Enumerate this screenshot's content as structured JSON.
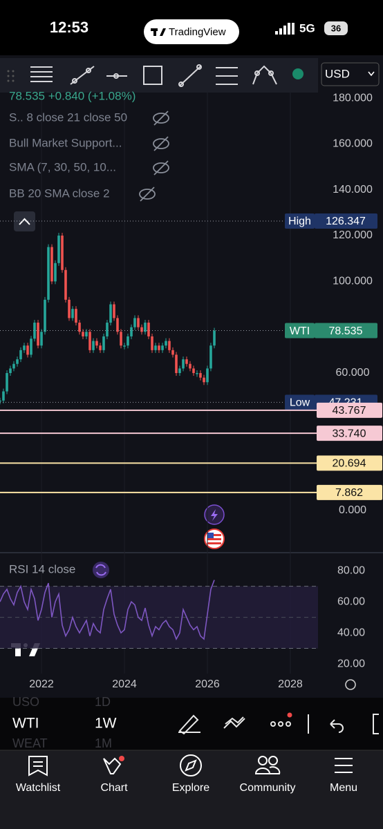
{
  "status": {
    "time": "12:53",
    "app": "TradingView",
    "network": "5G",
    "battery": "36"
  },
  "currency": "USD",
  "legend": [
    "78.535 +0.840 (+1.08%)",
    "S.. 8 close 21 close 50",
    "Bull Market Support...",
    "SMA (7, 30, 50, 10...",
    "BB 20 SMA close 2"
  ],
  "chart_data": [
    {
      "type": "candlestick",
      "x": [
        2021,
        2021.083,
        2021.167,
        2021.25,
        2021.333,
        2021.417,
        2021.5,
        2021.583,
        2021.667,
        2021.75,
        2021.833,
        2021.917,
        2022,
        2022.083,
        2022.167,
        2022.25,
        2022.333,
        2022.417,
        2022.5,
        2022.583,
        2022.667,
        2022.75,
        2022.833,
        2022.917,
        2023,
        2023.083,
        2023.167,
        2023.25,
        2023.333,
        2023.417,
        2023.5,
        2023.583,
        2023.667,
        2023.75,
        2023.833,
        2023.917,
        2024,
        2024.083,
        2024.167,
        2024.25,
        2024.333,
        2024.417,
        2024.5,
        2024.583,
        2024.667,
        2024.75,
        2024.833,
        2024.917,
        2025,
        2025.083,
        2025.167,
        2025.25,
        2025.333,
        2025.417,
        2025.5,
        2025.583,
        2025.667,
        2025.75,
        2025.833,
        2025.917,
        2026,
        2026.083,
        2026.167
      ],
      "values": [
        48,
        52,
        60,
        62,
        64,
        66,
        70,
        72,
        68,
        75,
        82,
        72,
        78,
        92,
        115,
        100,
        108,
        120,
        105,
        92,
        84,
        88,
        82,
        78,
        76,
        78,
        70,
        74,
        72,
        70,
        76,
        82,
        90,
        84,
        78,
        72,
        72,
        76,
        80,
        84,
        80,
        78,
        82,
        76,
        70,
        72,
        70,
        72,
        74,
        70,
        68,
        60,
        62,
        66,
        64,
        62,
        60,
        60,
        58,
        56,
        62,
        72,
        78.535
      ],
      "up_color": "#26a69a",
      "down_color": "#ef5350",
      "xlim": [
        2021,
        2028.667
      ],
      "xticks": [
        2022,
        2024,
        2026,
        2028
      ],
      "ylim": [
        -18.4,
        196.3
      ],
      "yticks": [
        {
          "value": 180,
          "label": "180.000"
        },
        {
          "value": 160,
          "label": "160.000"
        },
        {
          "value": 140,
          "label": "140.000"
        },
        {
          "value": 120,
          "label": "120.000"
        },
        {
          "value": 100,
          "label": "100.000"
        },
        {
          "value": 60,
          "label": "60.000"
        },
        {
          "value": 0,
          "label": "0.000"
        }
      ],
      "levels": [
        {
          "name": "High",
          "value": 126.347,
          "color": "#1f3466",
          "text_color": "#ffffff",
          "dashed": true
        },
        {
          "name": "WTI",
          "value": 78.535,
          "color": "#2b8a6e",
          "text_color": "#ffffff",
          "dashed": true
        },
        {
          "name": "Low",
          "value": 47.231,
          "color": "#1f3466",
          "text_color": "#ffffff",
          "dashed": true
        },
        {
          "value": 43.767,
          "color": "#f6c9d4",
          "text_color": "#111111",
          "dashed": false
        },
        {
          "value": 33.74,
          "value_label": "33.740",
          "color": "#f6c9d4",
          "text_color": "#111111",
          "dashed": false
        },
        {
          "value": 20.694,
          "color": "#fbe4a6",
          "text_color": "#111111",
          "dashed": false
        },
        {
          "value": 7.862,
          "color": "#fbe4a6",
          "text_color": "#111111",
          "dashed": false
        }
      ]
    },
    {
      "type": "line",
      "title": "RSI 14 close",
      "color": "#7e57c2",
      "values": [
        60,
        65,
        68,
        62,
        58,
        66,
        70,
        60,
        55,
        68,
        62,
        48,
        55,
        66,
        72,
        50,
        60,
        65,
        45,
        38,
        42,
        50,
        44,
        40,
        44,
        48,
        38,
        46,
        42,
        40,
        55,
        62,
        68,
        52,
        45,
        40,
        42,
        55,
        60,
        58,
        50,
        48,
        56,
        45,
        38,
        44,
        42,
        46,
        48,
        44,
        42,
        36,
        40,
        55,
        50,
        45,
        42,
        44,
        38,
        36,
        52,
        68,
        74
      ],
      "ylim": [
        13.8,
        91.6
      ],
      "yticks": [
        {
          "value": 80,
          "label": "80.00"
        },
        {
          "value": 60,
          "label": "60.00"
        },
        {
          "value": 40,
          "label": "40.00"
        },
        {
          "value": 20,
          "label": "20.00"
        }
      ],
      "bands": [
        30,
        70
      ],
      "midline": 50
    }
  ],
  "symbols": [
    {
      "symbol": "USO",
      "interval": "1D"
    },
    {
      "symbol": "WTI",
      "interval": "1W"
    },
    {
      "symbol": "WEAT",
      "interval": "1M"
    }
  ],
  "nav": [
    "Watchlist",
    "Chart",
    "Explore",
    "Community",
    "Menu"
  ]
}
